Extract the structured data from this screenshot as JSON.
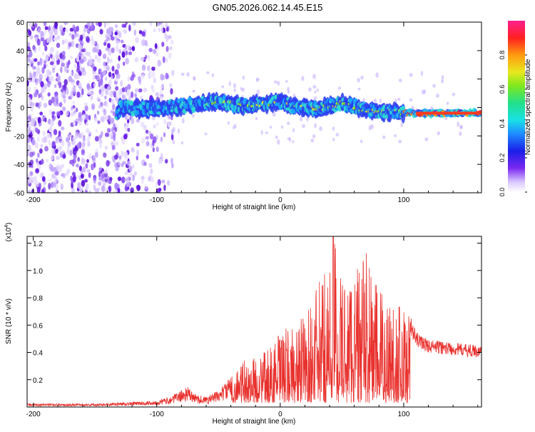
{
  "title": "GN05.2026.062.14.45.E15",
  "colors": {
    "trace": "#e8302c",
    "noise": "#7a3cf0",
    "track": "#1b2ee8"
  },
  "chart_data": [
    {
      "type": "heatmap",
      "title": "GN05.2026.062.14.45.E15",
      "xlabel": "Height of straight line (km)",
      "ylabel": "Frequency (Hz)",
      "xlim": [
        -205,
        163
      ],
      "ylim": [
        -60,
        60
      ],
      "xticks": [
        -200,
        -100,
        0,
        100
      ],
      "yticks": [
        -60,
        -40,
        -20,
        0,
        20,
        40,
        60
      ],
      "grid": false,
      "colorbar": {
        "label": "Normalized spectral amplitude",
        "ticks": [
          "0.0",
          "0.2",
          "0.4",
          "0.6",
          "0.8"
        ],
        "range": [
          0,
          1
        ]
      },
      "description_series": [
        {
          "name": "signal-track-frequency",
          "x": [
            -130,
            -110,
            -90,
            -70,
            -50,
            -30,
            -10,
            0,
            10,
            30,
            50,
            70,
            90,
            110,
            130,
            163
          ],
          "y": [
            0,
            -1,
            0,
            2,
            4,
            1,
            3,
            4,
            1,
            -1,
            3,
            -2,
            -3,
            -4,
            -4,
            -4
          ]
        }
      ]
    },
    {
      "type": "line",
      "xlabel": "Height of straight line (km)",
      "ylabel": "SNR (10 * v/v)",
      "y_multiplier": "(x10",
      "y_multiplier_exp": "4",
      "y_multiplier_close": ")",
      "xlim": [
        -205,
        163
      ],
      "ylim": [
        0,
        1.25
      ],
      "xticks": [
        -200,
        -100,
        0,
        100
      ],
      "yticks": [
        0.2,
        0.4,
        0.6,
        0.8,
        1.0,
        1.2
      ],
      "ytick_labels": [
        "0.2",
        "0.4",
        "0.6",
        "0.8",
        "1.0",
        "1.2"
      ],
      "grid": false,
      "series": [
        {
          "name": "SNR",
          "x": [
            -205,
            -180,
            -150,
            -120,
            -100,
            -90,
            -80,
            -75,
            -70,
            -60,
            -50,
            -40,
            -35,
            -30,
            -20,
            -10,
            0,
            10,
            20,
            30,
            40,
            43,
            50,
            60,
            70,
            80,
            90,
            100,
            105,
            110,
            120,
            130,
            140,
            150,
            163
          ],
          "y": [
            0.02,
            0.02,
            0.02,
            0.03,
            0.04,
            0.06,
            0.1,
            0.12,
            0.08,
            0.06,
            0.1,
            0.18,
            0.25,
            0.3,
            0.32,
            0.38,
            0.5,
            0.55,
            0.62,
            0.82,
            1.0,
            1.25,
            0.9,
            0.95,
            1.05,
            0.8,
            0.75,
            0.7,
            0.62,
            0.5,
            0.45,
            0.44,
            0.43,
            0.42,
            0.41
          ]
        }
      ]
    }
  ]
}
